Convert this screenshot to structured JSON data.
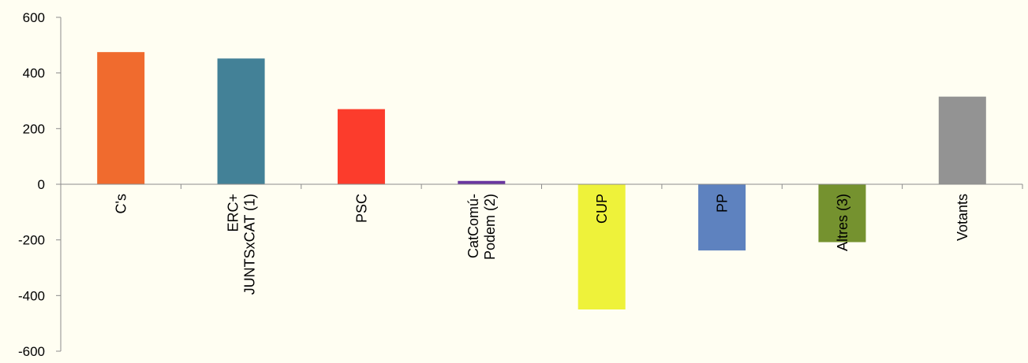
{
  "chart_data": {
    "type": "bar",
    "title": "",
    "xlabel": "",
    "ylabel": "",
    "ylim": [
      -600,
      600
    ],
    "yticks": [
      600,
      400,
      200,
      0,
      -200,
      -400,
      -600
    ],
    "grid": false,
    "legend": "none",
    "categories": [
      "C's",
      "ERC+ JUNTSxCAT (1)",
      "PSC",
      "CatComú- Podem (2)",
      "CUP",
      "PP",
      "Altres (3)",
      "Votants"
    ],
    "category_lines": [
      [
        "C's"
      ],
      [
        "ERC+",
        "JUNTSxCAT (1)"
      ],
      [
        "PSC"
      ],
      [
        "CatComú-",
        "Podem (2)"
      ],
      [
        "CUP"
      ],
      [
        "PP"
      ],
      [
        "Altres (3)"
      ],
      [
        "Votants"
      ]
    ],
    "values": [
      475,
      452,
      270,
      12,
      -450,
      -238,
      -208,
      315
    ],
    "colors": [
      "#f06b2e",
      "#438197",
      "#fc3c2c",
      "#6a36a0",
      "#eef23a",
      "#5e82bf",
      "#75922f",
      "#939393"
    ],
    "background": "#fffef2"
  }
}
